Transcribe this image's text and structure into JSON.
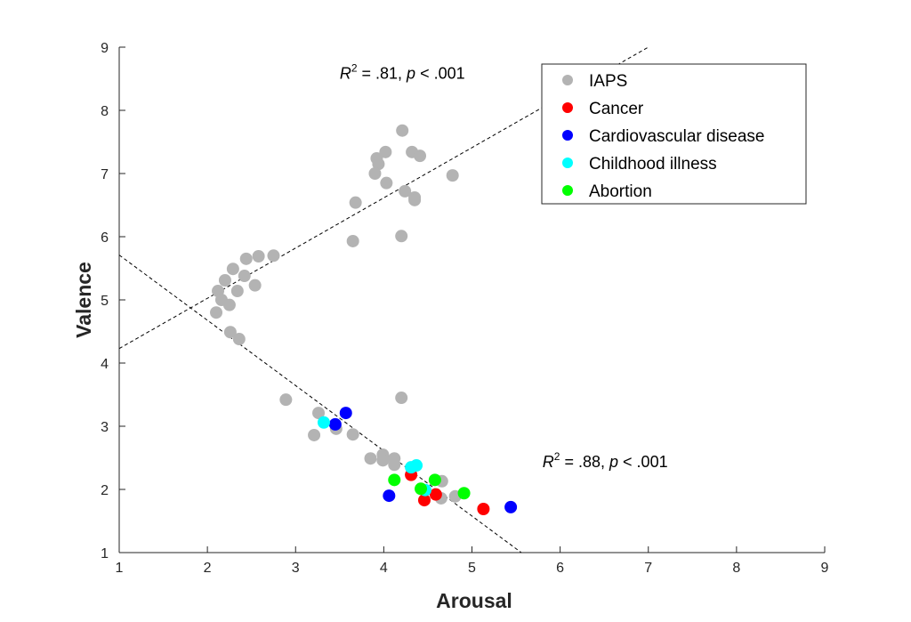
{
  "chart_data": {
    "type": "scatter",
    "title": "",
    "xlabel": "Arousal",
    "ylabel": "Valence",
    "xlim": [
      1,
      9
    ],
    "ylim": [
      1,
      9
    ],
    "xticks": [
      "1",
      "2",
      "3",
      "4",
      "5",
      "6",
      "7",
      "8",
      "9"
    ],
    "yticks": [
      "1",
      "2",
      "3",
      "4",
      "5",
      "6",
      "7",
      "8",
      "9"
    ],
    "grid": false,
    "legend_position": "top-right",
    "series": [
      {
        "name": "IAPS",
        "color": "#b3b3b3",
        "points": [
          [
            4.21,
            7.68
          ],
          [
            4.02,
            7.34
          ],
          [
            3.92,
            7.24
          ],
          [
            3.94,
            7.15
          ],
          [
            4.32,
            7.34
          ],
          [
            4.41,
            7.28
          ],
          [
            3.9,
            7.0
          ],
          [
            4.03,
            6.85
          ],
          [
            4.78,
            6.97
          ],
          [
            4.24,
            6.72
          ],
          [
            4.35,
            6.62
          ],
          [
            4.35,
            6.58
          ],
          [
            3.68,
            6.54
          ],
          [
            4.2,
            6.01
          ],
          [
            3.65,
            5.93
          ],
          [
            2.44,
            5.65
          ],
          [
            2.58,
            5.69
          ],
          [
            2.75,
            5.7
          ],
          [
            2.29,
            5.49
          ],
          [
            2.2,
            5.31
          ],
          [
            2.42,
            5.38
          ],
          [
            2.12,
            5.14
          ],
          [
            2.34,
            5.14
          ],
          [
            2.54,
            5.23
          ],
          [
            2.16,
            5.0
          ],
          [
            2.25,
            4.92
          ],
          [
            2.1,
            4.8
          ],
          [
            2.26,
            4.49
          ],
          [
            2.36,
            4.38
          ],
          [
            2.89,
            3.42
          ],
          [
            4.2,
            3.45
          ],
          [
            3.26,
            3.21
          ],
          [
            3.46,
            2.96
          ],
          [
            3.21,
            2.86
          ],
          [
            3.65,
            2.87
          ],
          [
            3.85,
            2.49
          ],
          [
            3.99,
            2.55
          ],
          [
            3.99,
            2.46
          ],
          [
            4.12,
            2.49
          ],
          [
            4.12,
            2.39
          ],
          [
            4.66,
            2.13
          ],
          [
            4.65,
            1.86
          ],
          [
            4.81,
            1.89
          ]
        ]
      },
      {
        "name": "Cancer",
        "color": "#ff0000",
        "points": [
          [
            4.31,
            2.23
          ],
          [
            4.59,
            1.92
          ],
          [
            4.46,
            1.83
          ],
          [
            5.13,
            1.69
          ]
        ]
      },
      {
        "name": "Cardiovascular disease",
        "color": "#0000ff",
        "points": [
          [
            3.57,
            3.21
          ],
          [
            3.45,
            3.03
          ],
          [
            4.06,
            1.9
          ],
          [
            5.44,
            1.72
          ]
        ]
      },
      {
        "name": "Childhood illness",
        "color": "#00ffff",
        "points": [
          [
            3.32,
            3.06
          ],
          [
            4.31,
            2.35
          ],
          [
            4.37,
            2.38
          ],
          [
            4.47,
            1.99
          ]
        ]
      },
      {
        "name": "Abortion",
        "color": "#00ff00",
        "points": [
          [
            4.12,
            2.15
          ],
          [
            4.58,
            2.15
          ],
          [
            4.42,
            2.01
          ],
          [
            4.91,
            1.94
          ]
        ]
      }
    ],
    "fit_lines": [
      {
        "name": "positive-fit",
        "x": [
          1,
          7
        ],
        "y": [
          4.23,
          9.0
        ]
      },
      {
        "name": "negative-fit",
        "x": [
          1,
          5.56
        ],
        "y": [
          5.71,
          1.0
        ]
      }
    ],
    "annotations": [
      {
        "name": "r2-annotation-upper",
        "r_label": "R",
        "sup": "2",
        "text": " = .81, ",
        "p": "p",
        "tail": " < .001",
        "at": [
          3.5,
          8.5
        ]
      },
      {
        "name": "r2-annotation-lower",
        "r_label": "R",
        "sup": "2",
        "text": " = .88, ",
        "p": "p",
        "tail": " < .001",
        "at": [
          5.8,
          2.35
        ]
      }
    ]
  }
}
